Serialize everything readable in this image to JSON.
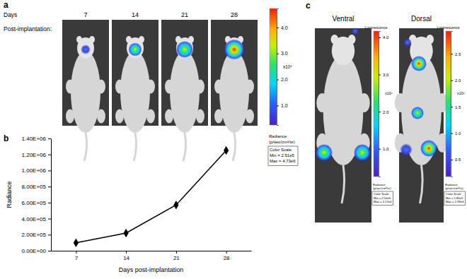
{
  "panel_labels": [
    "a",
    "b",
    "c"
  ],
  "panel_a": {
    "header": [
      "Days",
      "Post-implantation:"
    ],
    "days": [
      7,
      14,
      21,
      28
    ],
    "colorbar": {
      "range": [
        251000,
        4730000
      ],
      "ticks": [
        {
          "value": 4000000,
          "label": "4.0"
        },
        {
          "value": 3000000,
          "label": "3.0"
        },
        {
          "value": 2000000,
          "label": "2.0"
        },
        {
          "value": 1000000,
          "label": "1.0"
        }
      ],
      "multiplier": "x10⁶",
      "label": "Radiance",
      "units": "(p/sec/cm²/sr)",
      "box": [
        "Color Scale",
        "Min = 2.51e5",
        "Max = 4.73e6"
      ]
    }
  },
  "chart_data": {
    "type": "line",
    "categories": [
      "7",
      "14",
      "21",
      "28"
    ],
    "values": [
      100000,
      220000,
      570000,
      1250000
    ],
    "color": "#000000",
    "marker": "diamond",
    "grid": false,
    "x_label": "Days post-implantation",
    "y_label": "Radiance",
    "ylim": [
      0,
      1400000
    ],
    "yticks": [
      {
        "value": 0,
        "label": "0.00E+00"
      },
      {
        "value": 200000,
        "label": "2.00E+05"
      },
      {
        "value": 400000,
        "label": "4.00E+05"
      },
      {
        "value": 600000,
        "label": "6.00E+05"
      },
      {
        "value": 800000,
        "label": "8.00E+05"
      },
      {
        "value": 1000000,
        "label": "1.00E+06"
      },
      {
        "value": 1200000,
        "label": "1.20E+06"
      },
      {
        "value": 1400000,
        "label": "1.40E+06"
      }
    ]
  },
  "panel_c": {
    "views": [
      {
        "title": "Ventral",
        "colorbar": {
          "title": "Luminescence",
          "range": [
            254000,
            4170000
          ],
          "ticks": [
            {
              "value": 4000000,
              "label": "4.0"
            },
            {
              "value": 3000000,
              "label": "3.0"
            },
            {
              "value": 2000000,
              "label": "2.0"
            },
            {
              "value": 1000000,
              "label": "1.0"
            }
          ],
          "multiplier": "x10⁶",
          "label": "Radiance",
          "units": "(p/sec/cm²/sr)",
          "box": [
            "Color Scale",
            "Min = 2.54e5",
            "Max = 4.17e6"
          ]
        }
      },
      {
        "title": "Dorsal",
        "colorbar": {
          "title": "Luminescence",
          "range": [
            180000,
            2930000
          ],
          "ticks": [
            {
              "value": 2500000,
              "label": "2.5"
            },
            {
              "value": 2000000,
              "label": "2.0"
            },
            {
              "value": 1500000,
              "label": "1.5"
            },
            {
              "value": 1000000,
              "label": "1.0"
            },
            {
              "value": 500000,
              "label": "0.5"
            }
          ],
          "multiplier": "x10⁶",
          "label": "Radiance",
          "units": "(p/sec/cm²/sr)",
          "box": [
            "Color Scale",
            "Min = 1.80e5",
            "Max = 2.93e6"
          ]
        }
      }
    ]
  }
}
